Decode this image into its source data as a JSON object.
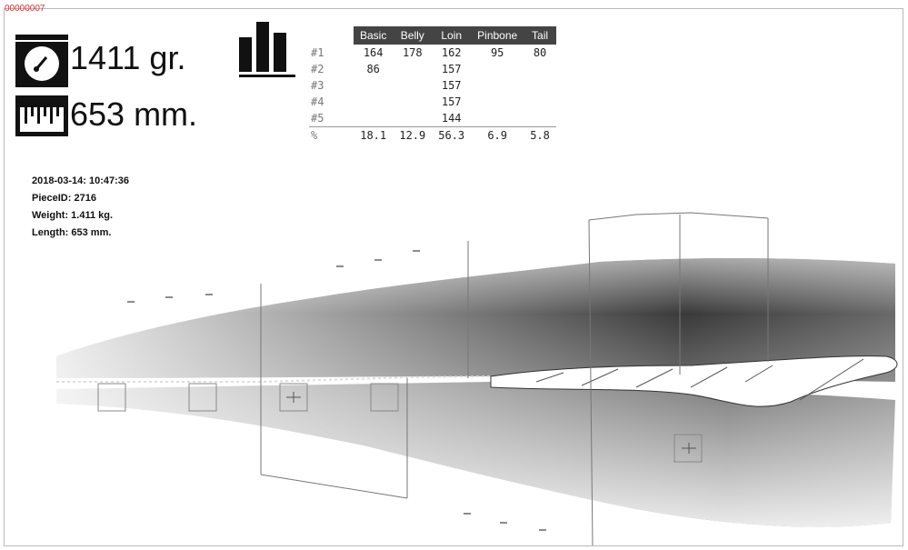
{
  "header_code": "00000007",
  "readouts": {
    "weight": "1411 gr.",
    "length": "653 mm."
  },
  "table": {
    "columns": [
      "Basic",
      "Belly",
      "Loin",
      "Pinbone",
      "Tail"
    ],
    "rows": [
      {
        "label": "#1",
        "cells": [
          "164",
          "178",
          "162",
          "95",
          "80"
        ]
      },
      {
        "label": "#2",
        "cells": [
          "86",
          "",
          "157",
          "",
          ""
        ]
      },
      {
        "label": "#3",
        "cells": [
          "",
          "",
          "157",
          "",
          ""
        ]
      },
      {
        "label": "#4",
        "cells": [
          "",
          "",
          "157",
          "",
          ""
        ]
      },
      {
        "label": "#5",
        "cells": [
          "",
          "",
          "144",
          "",
          ""
        ]
      },
      {
        "label": "%",
        "cells": [
          "18.1",
          "12.9",
          "56.3",
          "6.9",
          "5.8"
        ]
      }
    ]
  },
  "meta": {
    "timestamp": "2018-03-14: 10:47:36",
    "piece_id": "PieceID: 2716",
    "weight": "Weight: 1.411 kg.",
    "length": "Length: 653 mm."
  },
  "icons": {
    "scale": "scale-icon",
    "ruler": "ruler-icon",
    "chart": "bar-chart-icon"
  },
  "colors": {
    "accent": "#444444",
    "text": "#111111"
  }
}
